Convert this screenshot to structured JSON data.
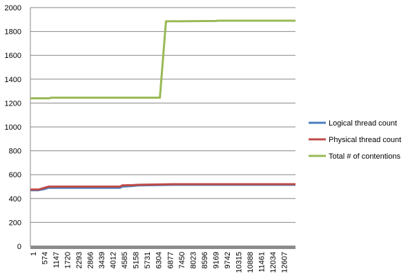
{
  "chart_data": {
    "type": "line",
    "title": "",
    "xlabel": "",
    "ylabel": "",
    "ylim": [
      0,
      2000
    ],
    "yticks": [
      0,
      200,
      400,
      600,
      800,
      1000,
      1200,
      1400,
      1600,
      1800,
      2000
    ],
    "xlim": [
      1,
      13000
    ],
    "x_tick_labels": [
      "1",
      "574",
      "1147",
      "1720",
      "2293",
      "2866",
      "3439",
      "4012",
      "4585",
      "5158",
      "5731",
      "6304",
      "6877",
      "7450",
      "8023",
      "8596",
      "9169",
      "9742",
      "10315",
      "10888",
      "11461",
      "12034",
      "12607"
    ],
    "grid": true,
    "legend": "right",
    "series": [
      {
        "name": "Logical thread count",
        "color": "#4a7ebb",
        "x": [
          1,
          400,
          700,
          900,
          4400,
          4500,
          5000,
          5300,
          7000,
          13000
        ],
        "y": [
          470,
          470,
          480,
          490,
          490,
          500,
          505,
          510,
          515,
          515
        ]
      },
      {
        "name": "Physical thread count",
        "color": "#be4b48",
        "x": [
          1,
          400,
          700,
          900,
          4400,
          4500,
          5000,
          5300,
          7000,
          13000
        ],
        "y": [
          475,
          475,
          490,
          500,
          500,
          510,
          512,
          515,
          520,
          520
        ]
      },
      {
        "name": "Total # of contentions",
        "color": "#98b954",
        "x": [
          1,
          950,
          1000,
          6350,
          6650,
          6700,
          9100,
          9200,
          13000
        ],
        "y": [
          1240,
          1240,
          1245,
          1245,
          1885,
          1885,
          1888,
          1890,
          1890
        ]
      }
    ]
  }
}
